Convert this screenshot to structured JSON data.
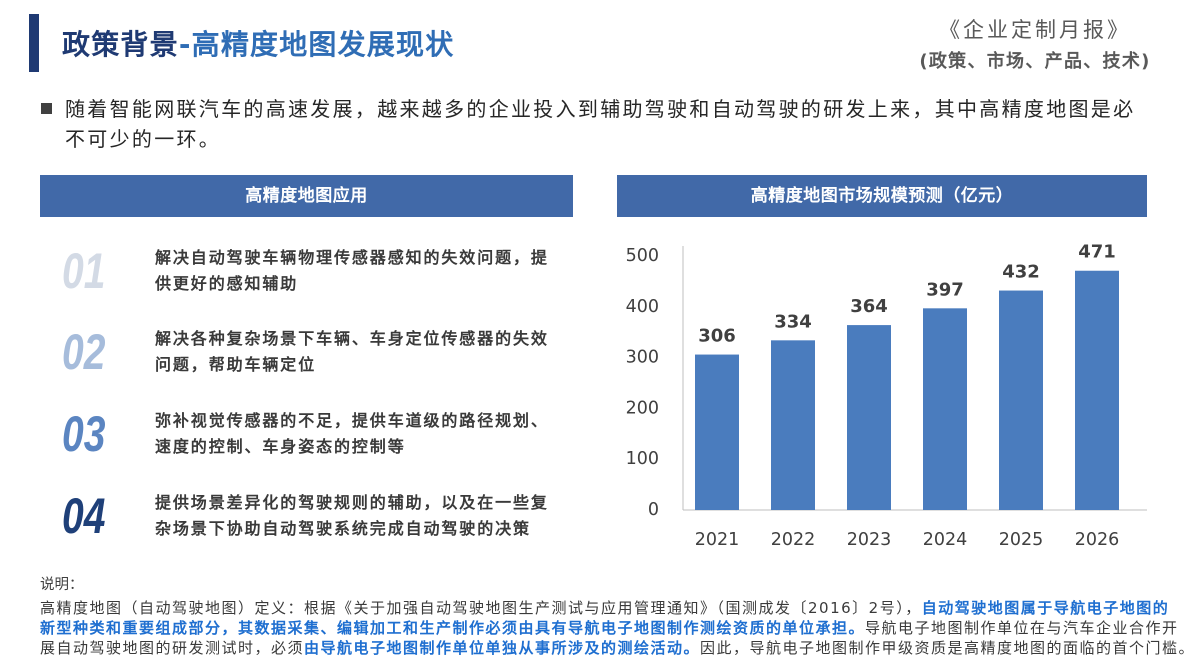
{
  "header": {
    "title_main": "政策背景",
    "title_sub": "-高精度地图发展现状",
    "title_main_color": "#1f3a73",
    "title_sub_color": "#2f6db5",
    "report_name": "《企业定制月报》",
    "report_topics": "(政策、市场、产品、技术)"
  },
  "intro": {
    "text": "随着智能网联汽车的高速发展，越来越多的企业投入到辅助驾驶和自动驾驶的研发上来，其中高精度地图是必不可少的一环。"
  },
  "applications": {
    "title": "高精度地图应用",
    "items": [
      {
        "num": "01",
        "color": "#d3dae5",
        "text": "解决自动驾驶车辆物理传感器感知的失效问题，提供更好的感知辅助"
      },
      {
        "num": "02",
        "color": "#a6bcdb",
        "text": "解决各种复杂场景下车辆、车身定位传感器的失效问题，帮助车辆定位"
      },
      {
        "num": "03",
        "color": "#5b85c1",
        "text": "弥补视觉传感器的不足，提供车道级的路径规划、速度的控制、车身姿态的控制等"
      },
      {
        "num": "04",
        "color": "#1f4079",
        "text": "提供场景差异化的驾驶规则的辅助，以及在一些复杂场景下协助自动驾驶系统完成自动驾驶的决策"
      }
    ]
  },
  "chart_data": {
    "type": "bar",
    "title": "高精度地图市场规模预测（亿元）",
    "categories": [
      "2021",
      "2022",
      "2023",
      "2024",
      "2025",
      "2026"
    ],
    "values": [
      306,
      334,
      364,
      397,
      432,
      471
    ],
    "ylim": [
      0,
      500
    ],
    "yticks": [
      0,
      100,
      200,
      300,
      400,
      500
    ],
    "grid": false,
    "data_labels": true,
    "bar_color": "#4a7cbe"
  },
  "footer": {
    "label": "说明：",
    "lines": [
      [
        {
          "t": "高精度地图（自动驾驶地图）定义：根据《关于加强自动驾驶地图生产测试与应用管理通知》（国测成发〔2016〕2号），",
          "hl": false
        },
        {
          "t": "自动驾驶地图属于导航电子地图的",
          "hl": true
        }
      ],
      [
        {
          "t": "新型种类和重要组成部分，其数据采集、编辑加工和生产制作必须由具有导航电子地图制作测绘资质的单位承担。",
          "hl": true
        },
        {
          "t": "导航电子地图制作单位在与汽车企业合作开",
          "hl": false
        }
      ],
      [
        {
          "t": "展自动驾驶地图的研发测试时，必须",
          "hl": false
        },
        {
          "t": "由导航电子地图制作单位单独从事所涉及的测绘活动。",
          "hl": true
        },
        {
          "t": "因此，导航电子地图制作甲级资质是高精度地图的面临的首个门槛。",
          "hl": false
        }
      ]
    ]
  },
  "colors": {
    "accent": "#1f3a73",
    "section_bar": "#4169a8",
    "highlight": "#1f6fd0",
    "body_text": "#333333"
  }
}
